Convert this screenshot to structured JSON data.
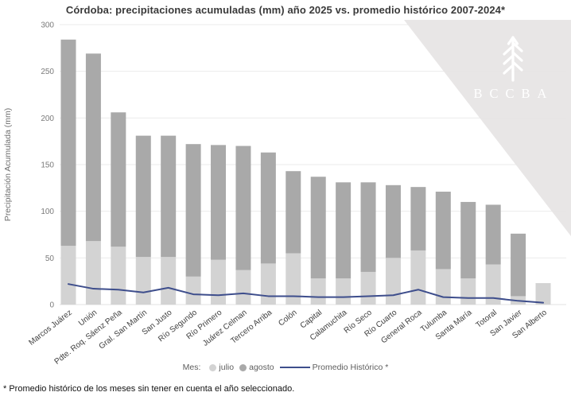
{
  "page": {
    "footnote": "* Promedio histórico de los meses sin tener en cuenta el año seleccionado."
  },
  "legend": {
    "prefix": "Mes:",
    "items": [
      {
        "label": "julio",
        "color": "#d3d3d3"
      },
      {
        "label": "agosto",
        "color": "#a9a9a9"
      }
    ],
    "line_item": {
      "label": "Promedio Histórico *",
      "color": "#3e4e8c"
    }
  },
  "watermark": {
    "text": "BCCBA",
    "triangle_color": "#e6e4e4",
    "logo_color": "#ffffff"
  },
  "chart_data": {
    "type": "bar",
    "stacked": true,
    "title": "Córdoba: precipitaciones acumuladas (mm) año 2025 vs. promedio histórico 2007-2024*",
    "xlabel": "",
    "ylabel": "Precipitación Acumulada (mm)",
    "ylim": [
      0,
      300
    ],
    "yticks": [
      0,
      50,
      100,
      150,
      200,
      250,
      300
    ],
    "grid": true,
    "legend_position": "bottom",
    "categories": [
      "Marcos Juárez",
      "Unión",
      "Pdte. Roq. Sáenz Peña",
      "Gral. San Martín",
      "San Justo",
      "Río Segundo",
      "Río Primero",
      "Juárez Celman",
      "Tercero Arriba",
      "Colón",
      "Capital",
      "Calamuchita",
      "Río Seco",
      "Río Cuarto",
      "General Roca",
      "Tulumba",
      "Santa María",
      "Totoral",
      "San Javier",
      "San Alberto"
    ],
    "series": [
      {
        "name": "julio",
        "type": "bar",
        "color": "#d3d3d3",
        "values": [
          63,
          68,
          62,
          51,
          51,
          30,
          48,
          37,
          44,
          55,
          28,
          28,
          35,
          50,
          58,
          38,
          28,
          43,
          9,
          23
        ]
      },
      {
        "name": "agosto",
        "type": "bar",
        "color": "#a9a9a9",
        "values": [
          221,
          201,
          144,
          130,
          130,
          142,
          123,
          133,
          119,
          88,
          109,
          103,
          96,
          78,
          68,
          83,
          82,
          64,
          67,
          0
        ]
      },
      {
        "name": "Promedio Histórico *",
        "type": "line",
        "color": "#3e4e8c",
        "values": [
          22,
          17,
          16,
          13,
          18,
          11,
          10,
          12,
          9,
          9,
          8,
          8,
          9,
          10,
          16,
          8,
          7,
          7,
          4,
          2
        ]
      }
    ],
    "totals": [
      284,
      269,
      206,
      181,
      181,
      172,
      171,
      170,
      163,
      143,
      137,
      131,
      131,
      128,
      126,
      121,
      110,
      107,
      76,
      23
    ]
  }
}
